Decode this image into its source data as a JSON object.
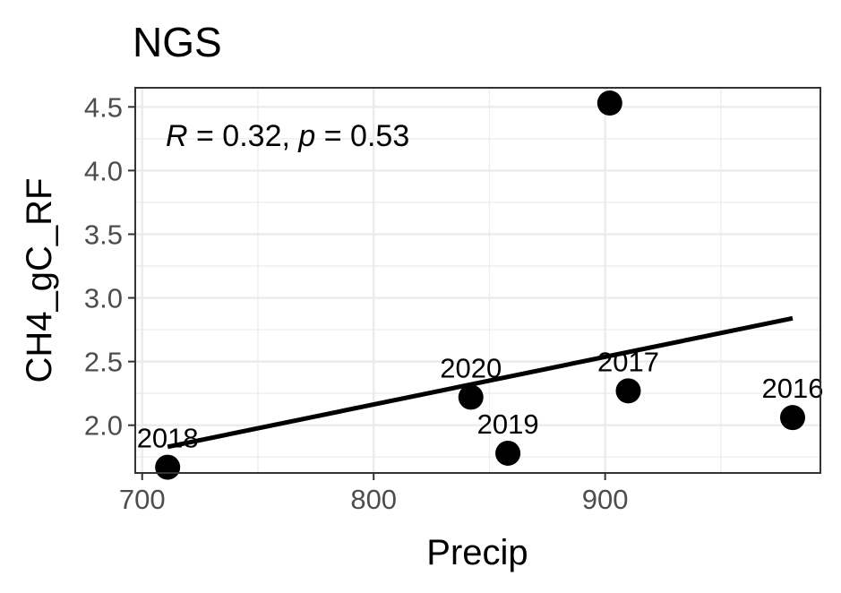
{
  "chart_data": {
    "type": "scatter",
    "title": "NGS",
    "xlabel": "Precip",
    "ylabel": "CH4_gC_RF",
    "xlim": [
      697,
      993
    ],
    "ylim": [
      1.625,
      4.65
    ],
    "x_ticks": [
      700,
      800,
      900
    ],
    "y_ticks": [
      2.0,
      2.5,
      3.0,
      3.5,
      4.0,
      4.5
    ],
    "grid": true,
    "points": [
      {
        "x": 711,
        "y": 1.67,
        "label": "2018"
      },
      {
        "x": 842,
        "y": 2.22,
        "label": "2020"
      },
      {
        "x": 858,
        "y": 1.78,
        "label": "2019"
      },
      {
        "x": 902,
        "y": 4.53,
        "label": ""
      },
      {
        "x": 910,
        "y": 2.27,
        "label": "2017"
      },
      {
        "x": 981,
        "y": 2.06,
        "label": "2016"
      }
    ],
    "fit_line": {
      "x": [
        711,
        981
      ],
      "y": [
        1.83,
        2.84
      ]
    },
    "annotation": {
      "r_symbol": "R",
      "r_value": " = 0.32, ",
      "p_symbol": "p",
      "p_value": " = 0.53"
    }
  }
}
